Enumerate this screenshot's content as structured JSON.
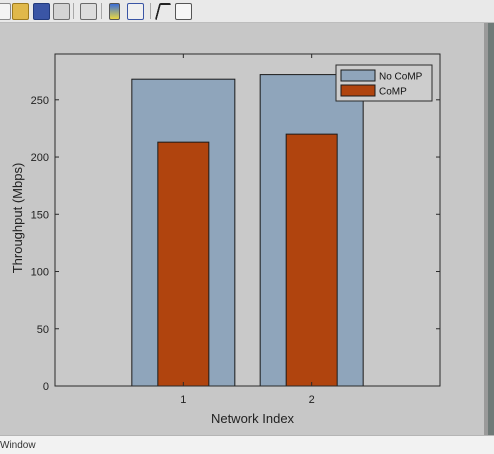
{
  "toolbar": {
    "icons": [
      "new-file-icon",
      "open-folder-icon",
      "save-icon",
      "print-icon",
      "print-preview-icon",
      "link-icon",
      "insert-colorbar-icon",
      "insert-legend-icon",
      "pointer-icon",
      "property-editor-icon"
    ]
  },
  "status": {
    "text": "Window"
  },
  "colors": {
    "no_comp": "#8fa5bb",
    "comp": "#b0440e",
    "axes_bg": "#c9c9c9"
  },
  "chart_data": {
    "type": "bar",
    "categories": [
      "1",
      "2"
    ],
    "series": [
      {
        "name": "No CoMP",
        "values": [
          268,
          272
        ]
      },
      {
        "name": "CoMP",
        "values": [
          213,
          220
        ]
      }
    ],
    "xlabel": "Network Index",
    "ylabel": "Throughput (Mbps)",
    "ylim": [
      0,
      290
    ],
    "yticks": [
      0,
      50,
      100,
      150,
      200,
      250
    ],
    "xlim": [
      0,
      3
    ],
    "legend": {
      "placement": "top-right",
      "entries": [
        "No CoMP",
        "CoMP"
      ]
    },
    "grid": false
  }
}
